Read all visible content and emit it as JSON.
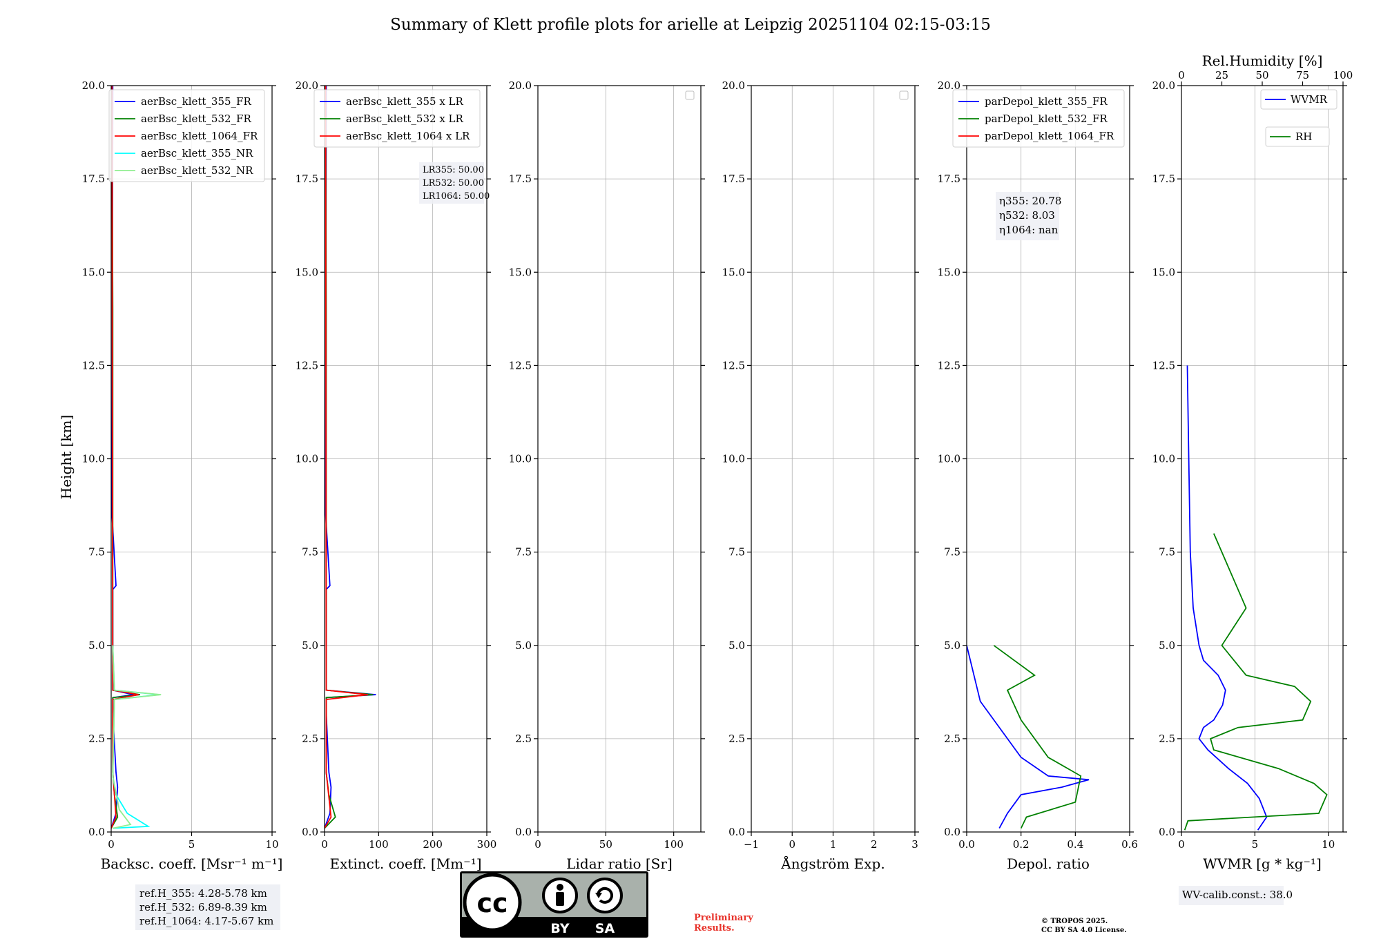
{
  "figure_title": "Summary of Klett profile plots for arielle at Leipzig 20251104 02:15-03:15",
  "ylabel": "Height [km]",
  "colors": {
    "c355": "#0000ff",
    "c532": "#008000",
    "c1064": "#ff0000",
    "c355nr": "#00ffff",
    "c532nr": "#90ee90",
    "grid": "#b0b0b0"
  },
  "chart_data": [
    {
      "type": "line",
      "xlabel": "Backsc. coeff. [Msr⁻¹ m⁻¹]",
      "xlim": [
        0,
        10
      ],
      "ylim": [
        0,
        20
      ],
      "xticks": [
        "0",
        "5",
        "10"
      ],
      "xtick_values": [
        0,
        5,
        10
      ],
      "yticks": [
        "0.0",
        "2.5",
        "5.0",
        "7.5",
        "10.0",
        "12.5",
        "15.0",
        "17.5",
        "20.0"
      ],
      "legend": [
        "aerBsc_klett_355_FR",
        "aerBsc_klett_532_FR",
        "aerBsc_klett_1064_FR",
        "aerBsc_klett_355_NR",
        "aerBsc_klett_532_NR"
      ],
      "series": [
        {
          "name": "aerBsc_klett_355_FR",
          "color": "#0000ff",
          "x": [
            0,
            0.3,
            0.4,
            0.3,
            0.1,
            0.1,
            1.4,
            0.1,
            0.1,
            0.3,
            0.05,
            0.1
          ],
          "y": [
            0.1,
            0.5,
            1.2,
            1.6,
            3.2,
            3.6,
            3.68,
            3.8,
            6.5,
            6.6,
            8.5,
            20
          ]
        },
        {
          "name": "aerBsc_klett_532_FR",
          "color": "#008000",
          "x": [
            0,
            0.4,
            0.2,
            0.1,
            0.1,
            1.8,
            0.1,
            0.1,
            0.05
          ],
          "y": [
            0.1,
            0.4,
            1.0,
            1.6,
            3.6,
            3.68,
            3.8,
            14,
            20
          ]
        },
        {
          "name": "aerBsc_klett_1064_FR",
          "color": "#ff0000",
          "x": [
            0,
            0.3,
            0.1,
            0.1,
            1.7,
            0.1,
            0.05
          ],
          "y": [
            0.1,
            0.4,
            1.6,
            3.55,
            3.68,
            3.8,
            20
          ]
        },
        {
          "name": "aerBsc_klett_355_NR",
          "color": "#00ffff",
          "x": [
            0.1,
            2.3,
            1.0,
            0.3,
            0.1,
            0.2,
            3.0,
            0.2,
            0.1
          ],
          "y": [
            0.1,
            0.15,
            0.5,
            1.0,
            1.5,
            3.55,
            3.68,
            3.8,
            5.0
          ]
        },
        {
          "name": "aerBsc_klett_532_NR",
          "color": "#90ee90",
          "x": [
            0.1,
            1.2,
            0.5,
            0.1,
            0.2,
            3.1,
            0.2,
            0.1
          ],
          "y": [
            0.1,
            0.2,
            0.6,
            1.5,
            3.55,
            3.68,
            3.8,
            5.0
          ]
        }
      ]
    },
    {
      "type": "line",
      "xlabel": "Extinct. coeff. [Mm⁻¹]",
      "xlim": [
        0,
        300
      ],
      "ylim": [
        0,
        20
      ],
      "xticks": [
        "0",
        "100",
        "200",
        "300"
      ],
      "xtick_values": [
        0,
        100,
        200,
        300
      ],
      "yticks": [
        "0.0",
        "2.5",
        "5.0",
        "7.5",
        "10.0",
        "12.5",
        "15.0",
        "17.5",
        "20.0"
      ],
      "legend": [
        "aerBsc_klett_355 x LR",
        "aerBsc_klett_532 x LR",
        "aerBsc_klett_1064 x LR"
      ],
      "annotation": [
        "LR355: 50.00",
        "LR532: 50.00",
        "LR1064: 50.00"
      ],
      "series": [
        {
          "name": "aerBsc_klett_355 x LR",
          "color": "#0000ff",
          "x": [
            0,
            10,
            12,
            8,
            3,
            3,
            95,
            3,
            3,
            10,
            2,
            3
          ],
          "y": [
            0.1,
            0.5,
            1.2,
            1.6,
            3.2,
            3.6,
            3.68,
            3.8,
            6.5,
            6.6,
            8.5,
            20
          ]
        },
        {
          "name": "aerBsc_klett_532 x LR",
          "color": "#008000",
          "x": [
            0,
            20,
            8,
            3,
            3,
            90,
            3,
            3,
            2
          ],
          "y": [
            0.1,
            0.4,
            1.0,
            1.6,
            3.6,
            3.68,
            3.8,
            14,
            20
          ]
        },
        {
          "name": "aerBsc_klett_1064 x LR",
          "color": "#ff0000",
          "x": [
            0,
            12,
            3,
            3,
            80,
            3,
            2
          ],
          "y": [
            0.1,
            0.4,
            1.6,
            3.55,
            3.68,
            3.8,
            20
          ]
        }
      ]
    },
    {
      "type": "line",
      "xlabel": "Lidar ratio [Sr]",
      "xlim": [
        0,
        120
      ],
      "ylim": [
        0,
        20
      ],
      "xticks": [
        "0",
        "50",
        "100"
      ],
      "xtick_values": [
        0,
        50,
        100
      ],
      "yticks": [
        "0.0",
        "2.5",
        "5.0",
        "7.5",
        "10.0",
        "12.5",
        "15.0",
        "17.5",
        "20.0"
      ],
      "series": []
    },
    {
      "type": "line",
      "xlabel": "Ångström Exp.",
      "xlim": [
        -1,
        3
      ],
      "ylim": [
        0,
        20
      ],
      "xticks": [
        "−1",
        "0",
        "1",
        "2",
        "3"
      ],
      "xtick_values": [
        -1,
        0,
        1,
        2,
        3
      ],
      "yticks": [
        "0.0",
        "2.5",
        "5.0",
        "7.5",
        "10.0",
        "12.5",
        "15.0",
        "17.5",
        "20.0"
      ],
      "series": []
    },
    {
      "type": "line",
      "xlabel": "Depol. ratio",
      "xlim": [
        0,
        0.6
      ],
      "ylim": [
        0,
        20
      ],
      "xticks": [
        "0.0",
        "0.2",
        "0.4",
        "0.6"
      ],
      "xtick_values": [
        0,
        0.2,
        0.4,
        0.6
      ],
      "yticks": [
        "0.0",
        "2.5",
        "5.0",
        "7.5",
        "10.0",
        "12.5",
        "15.0",
        "17.5",
        "20.0"
      ],
      "legend": [
        "parDepol_klett_355_FR",
        "parDepol_klett_532_FR",
        "parDepol_klett_1064_FR"
      ],
      "annotation": [
        "η355: 20.78",
        "η532: 8.03",
        "η1064: nan"
      ],
      "series": [
        {
          "name": "parDepol_klett_355_FR",
          "color": "#0000ff",
          "x": [
            0.12,
            0.15,
            0.2,
            0.35,
            0.45,
            0.3,
            0.2,
            0.05,
            0.0
          ],
          "y": [
            0.1,
            0.5,
            1.0,
            1.2,
            1.4,
            1.5,
            2.0,
            3.5,
            5.0
          ]
        },
        {
          "name": "parDepol_klett_532_FR",
          "color": "#008000",
          "x": [
            0.2,
            0.22,
            0.4,
            0.42,
            0.3,
            0.2,
            0.15,
            0.25,
            0.1
          ],
          "y": [
            0.1,
            0.4,
            0.8,
            1.5,
            2.0,
            3.0,
            3.8,
            4.2,
            5.0
          ]
        }
      ]
    },
    {
      "type": "line",
      "xlabel": "WVMR [g * kg⁻¹]",
      "x2label": "Rel.Humidity [%]",
      "xlim": [
        0,
        11
      ],
      "x2lim": [
        0,
        100
      ],
      "ylim": [
        0,
        20
      ],
      "xticks": [
        "0",
        "5",
        "10"
      ],
      "xtick_values": [
        0,
        5,
        10
      ],
      "x2ticks": [
        "0",
        "25",
        "50",
        "75",
        "100"
      ],
      "x2tick_values": [
        0,
        25,
        50,
        75,
        100
      ],
      "yticks": [
        "0.0",
        "2.5",
        "5.0",
        "7.5",
        "10.0",
        "12.5",
        "15.0",
        "17.5",
        "20.0"
      ],
      "legend": [
        "WVMR",
        "RH"
      ],
      "annotation": [
        "WV-calib.const.: 38.0"
      ],
      "series": [
        {
          "name": "WVMR",
          "color": "#0000ff",
          "axis": "x",
          "x": [
            5.2,
            5.8,
            5.3,
            4.5,
            3.2,
            1.8,
            1.2,
            1.5,
            2.2,
            2.8,
            3.0,
            2.5,
            1.5,
            1.2,
            0.8,
            0.6,
            0.5,
            0.4
          ],
          "y": [
            0.05,
            0.4,
            0.9,
            1.3,
            1.7,
            2.2,
            2.5,
            2.8,
            3.0,
            3.4,
            3.8,
            4.2,
            4.6,
            5.0,
            6.0,
            7.5,
            10.0,
            12.5
          ]
        },
        {
          "name": "RH",
          "color": "#008000",
          "axis": "x2",
          "x": [
            2,
            4,
            85,
            90,
            82,
            60,
            20,
            18,
            35,
            75,
            80,
            70,
            40,
            25,
            40,
            20
          ],
          "y": [
            0.05,
            0.3,
            0.5,
            1.0,
            1.3,
            1.7,
            2.2,
            2.5,
            2.8,
            3.0,
            3.5,
            3.9,
            4.2,
            5.0,
            6.0,
            8.0
          ]
        }
      ]
    }
  ],
  "ref_heights": [
    "ref.H_355: 4.28-5.78 km",
    "ref.H_532: 6.89-8.39 km",
    "ref.H_1064: 4.17-5.67 km"
  ],
  "license": {
    "cc": "cc",
    "by": "BY",
    "sa": "SA"
  },
  "preliminary": [
    "Preliminary",
    "Results."
  ],
  "copyright": [
    "© TROPOS 2025.",
    "CC BY SA 4.0 License."
  ]
}
